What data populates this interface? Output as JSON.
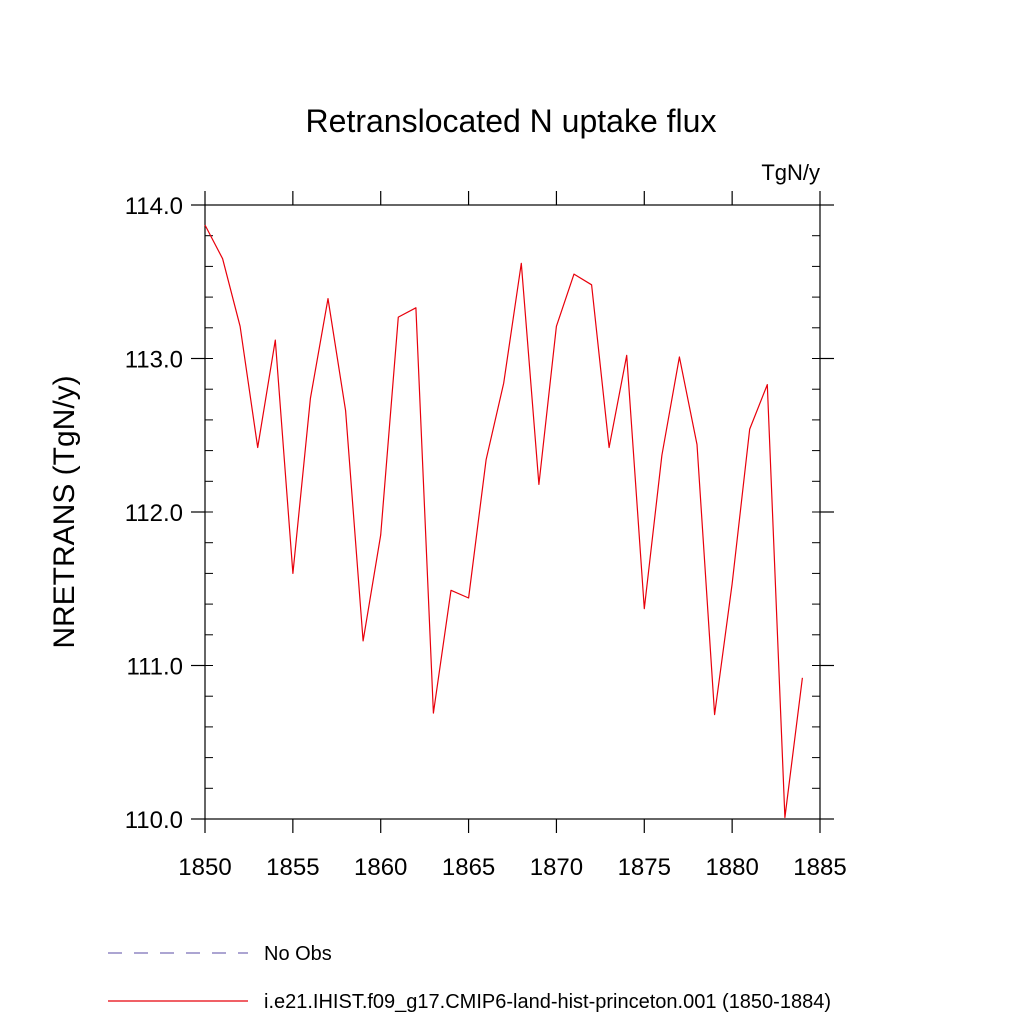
{
  "chart_data": {
    "type": "line",
    "title": "Retranslocated N uptake flux",
    "units_label": "TgN/y",
    "ylabel": "NRETRANS  (TgN/y)",
    "xlabel": "",
    "xlim": [
      1850,
      1885
    ],
    "ylim": [
      110.0,
      114.0
    ],
    "x_ticks": [
      1850,
      1855,
      1860,
      1865,
      1870,
      1875,
      1880,
      1885
    ],
    "y_ticks": [
      "110.0",
      "111.0",
      "112.0",
      "113.0",
      "114.0"
    ],
    "grid": false,
    "series": [
      {
        "name": "i.e21.IHIST.f09_g17.CMIP6-land-hist-princeton.001 (1850-1884)",
        "color": "#e8000b",
        "x": [
          1850,
          1851,
          1852,
          1853,
          1854,
          1855,
          1856,
          1857,
          1858,
          1859,
          1860,
          1861,
          1862,
          1863,
          1864,
          1865,
          1866,
          1867,
          1868,
          1869,
          1870,
          1871,
          1872,
          1873,
          1874,
          1875,
          1876,
          1877,
          1878,
          1879,
          1880,
          1881,
          1882,
          1883,
          1884
        ],
        "values": [
          113.87,
          113.65,
          113.21,
          112.42,
          113.12,
          111.6,
          112.74,
          113.39,
          112.66,
          111.16,
          111.85,
          113.27,
          113.33,
          110.69,
          111.49,
          111.44,
          112.34,
          112.84,
          113.62,
          112.18,
          113.21,
          113.55,
          113.48,
          112.42,
          113.02,
          111.37,
          112.37,
          113.01,
          112.44,
          110.68,
          111.53,
          112.54,
          112.83,
          110.01,
          110.92
        ]
      }
    ],
    "legend": [
      {
        "label": "No Obs",
        "color": "#7a6fb8",
        "style": "dashed"
      },
      {
        "label": "i.e21.IHIST.f09_g17.CMIP6-land-hist-princeton.001 (1850-1884)",
        "color": "#e8000b",
        "style": "solid"
      }
    ]
  }
}
